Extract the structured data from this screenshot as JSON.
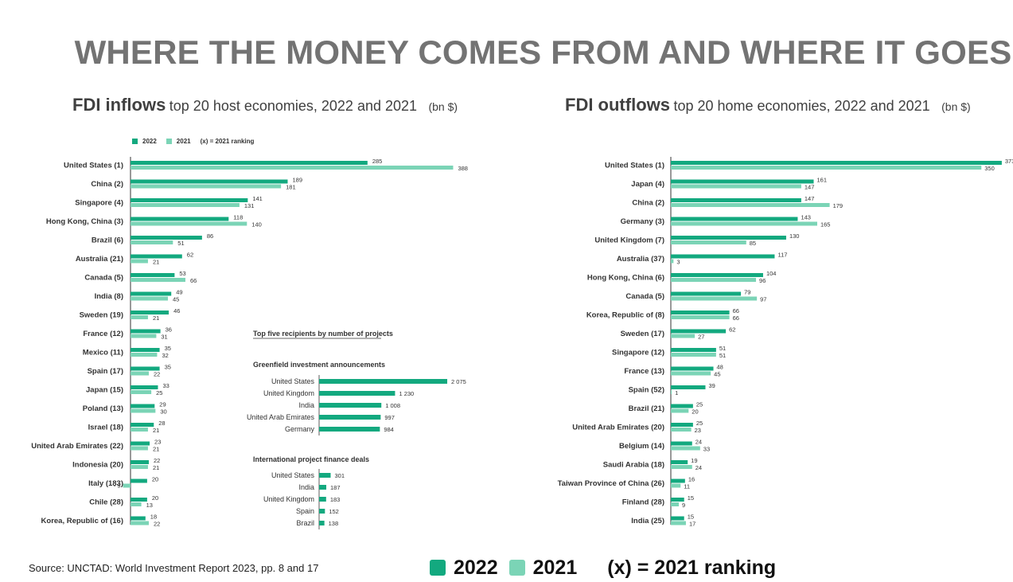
{
  "page": {
    "title": "WHERE THE MONEY COMES FROM AND WHERE IT GOES",
    "source": "Source: UNCTAD: World Investment Report 2023, pp. 8 and 17"
  },
  "colors": {
    "y2022": "#13a97f",
    "y2021": "#7bd4b6"
  },
  "legend_big": {
    "y2022": "2022",
    "y2021": "2021",
    "ranking": "(x) = 2021 ranking"
  },
  "inflows": {
    "title_bold": "FDI inflows",
    "title_rest": "top 20 host economies, 2022 and 2021",
    "unit": "(bn $)",
    "legend": {
      "y2022": "2022",
      "y2021": "2021",
      "ranking": "(x) = 2021 ranking"
    }
  },
  "outflows": {
    "title_bold": "FDI outflows",
    "title_rest": "top 20 home economies, 2022 and 2021",
    "unit": "(bn $)"
  },
  "inset": {
    "title": "Top five recipients by number of projects",
    "greenfield": {
      "title": "Greenfield investment announcements",
      "items": [
        {
          "label": "United States",
          "value": 2075,
          "display": "2 075"
        },
        {
          "label": "United Kingdom",
          "value": 1230,
          "display": "1 230"
        },
        {
          "label": "India",
          "value": 1008,
          "display": "1 008"
        },
        {
          "label": "United Arab Emirates",
          "value": 997,
          "display": "997"
        },
        {
          "label": "Germany",
          "value": 984,
          "display": "984"
        }
      ]
    },
    "project_finance": {
      "title": "International project finance deals",
      "items": [
        {
          "label": "United States",
          "value": 301,
          "display": "301"
        },
        {
          "label": "India",
          "value": 187,
          "display": "187"
        },
        {
          "label": "United Kingdom",
          "value": 183,
          "display": "183"
        },
        {
          "label": "Spain",
          "value": 152,
          "display": "152"
        },
        {
          "label": "Brazil",
          "value": 138,
          "display": "138"
        }
      ]
    }
  },
  "chart_data": [
    {
      "type": "bar",
      "orientation": "horizontal",
      "title": "FDI inflows top 20 host economies, 2022 and 2021",
      "unit": "(bn $)",
      "categories": [
        "United States (1)",
        "China (2)",
        "Singapore (4)",
        "Hong Kong, China (3)",
        "Brazil (6)",
        "Australia (21)",
        "Canada (5)",
        "India (8)",
        "Sweden (19)",
        "France (12)",
        "Mexico (11)",
        "Spain (17)",
        "Japan (15)",
        "Poland (13)",
        "Israel (18)",
        "United Arab Emirates (22)",
        "Indonesia (20)",
        "Italy (183)",
        "Chile (28)",
        "Korea, Republic of (16)"
      ],
      "series": [
        {
          "name": "2022",
          "values": [
            285,
            189,
            141,
            118,
            86,
            62,
            53,
            49,
            46,
            36,
            35,
            35,
            33,
            29,
            28,
            23,
            22,
            20,
            20,
            18
          ]
        },
        {
          "name": "2021",
          "values": [
            388,
            181,
            131,
            140,
            51,
            21,
            66,
            45,
            21,
            31,
            32,
            22,
            25,
            30,
            21,
            21,
            21,
            -9,
            13,
            22
          ]
        }
      ],
      "value_labels_2021": [
        "388",
        "181",
        "131",
        "140",
        "51",
        "21",
        "66",
        "45",
        "21",
        "31",
        "32",
        "22",
        "25",
        "30",
        "21",
        "21",
        "21",
        "- 9",
        "13",
        "22"
      ]
    },
    {
      "type": "bar",
      "orientation": "horizontal",
      "title": "FDI outflows top 20 home economies, 2022 and 2021",
      "unit": "(bn $)",
      "categories": [
        "United States (1)",
        "Japan (4)",
        "China (2)",
        "Germany (3)",
        "United Kingdom (7)",
        "Australia (37)",
        "Hong Kong, China (6)",
        "Canada (5)",
        "Korea, Republic of (8)",
        "Sweden (17)",
        "Singapore (12)",
        "France (13)",
        "Spain (52)",
        "Brazil (21)",
        "United Arab Emirates (20)",
        "Belgium (14)",
        "Saudi Arabia (18)",
        "Taiwan Province of China (26)",
        "Finland (28)",
        "India (25)"
      ],
      "series": [
        {
          "name": "2022",
          "values": [
            373,
            161,
            147,
            143,
            130,
            117,
            104,
            79,
            66,
            62,
            51,
            48,
            39,
            25,
            25,
            24,
            19,
            16,
            15,
            15
          ]
        },
        {
          "name": "2021",
          "values": [
            350,
            147,
            179,
            165,
            85,
            3,
            96,
            97,
            66,
            27,
            51,
            45,
            1,
            20,
            23,
            33,
            24,
            11,
            9,
            17
          ]
        }
      ],
      "value_labels_2022": [
        "373",
        "161",
        "147",
        "143",
        "130",
        "117",
        "104",
        "79",
        "66",
        "62",
        "51",
        "48",
        "39",
        "25",
        "25",
        "24",
        "19",
        "16",
        "15",
        "15"
      ]
    }
  ]
}
